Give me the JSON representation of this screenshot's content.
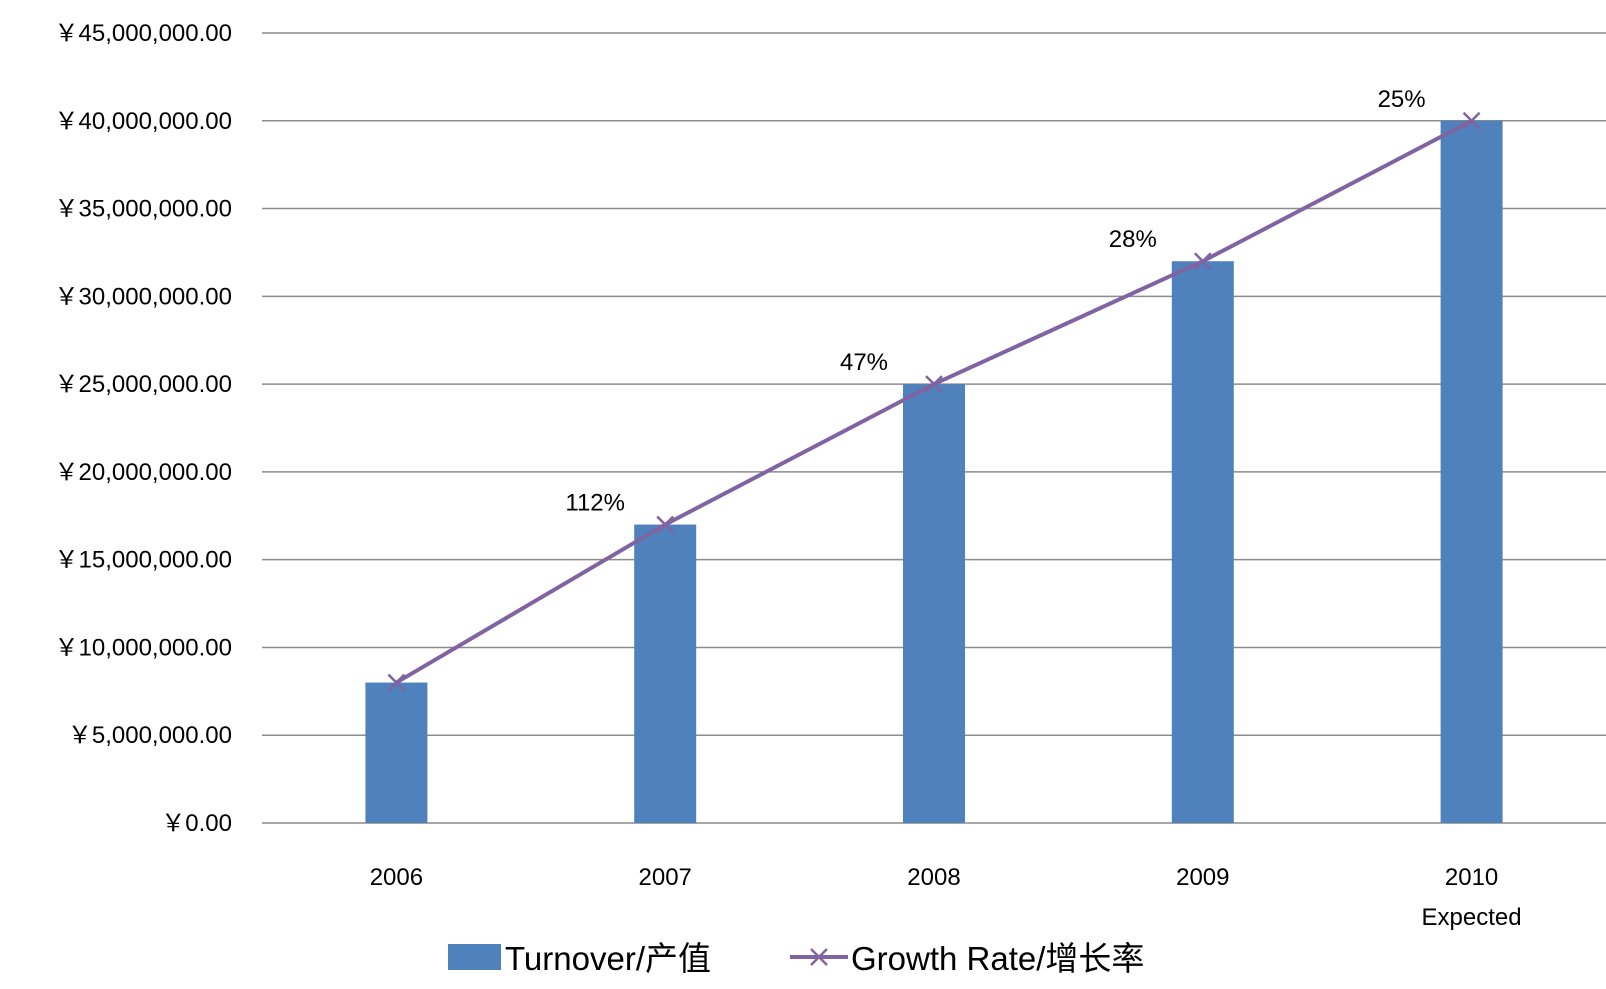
{
  "chart_data": {
    "type": "bar",
    "categories": [
      "2006",
      "2007",
      "2008",
      "2009",
      "2010"
    ],
    "category_sublabels": [
      "",
      "",
      "",
      "",
      "Expected"
    ],
    "ylim": [
      0,
      45000000
    ],
    "ytick_values": [
      0,
      5000000,
      10000000,
      15000000,
      20000000,
      25000000,
      30000000,
      35000000,
      40000000,
      45000000
    ],
    "ytick_labels": [
      "￥0.00",
      "￥5,000,000.00",
      "￥10,000,000.00",
      "￥15,000,000.00",
      "￥20,000,000.00",
      "￥25,000,000.00",
      "￥30,000,000.00",
      "￥35,000,000.00",
      "￥40,000,000.00",
      "￥45,000,000.00"
    ],
    "grid": true,
    "legend_position": "bottom",
    "series": [
      {
        "name": "Turnover/产值",
        "kind": "bar",
        "color": "#4f81bd",
        "values": [
          8000000,
          17000000,
          25000000,
          32000000,
          40000000
        ]
      },
      {
        "name": "Growth Rate/增长率",
        "kind": "line",
        "marker": "x",
        "color": "#8064a2",
        "values": [
          8000000,
          17000000,
          25000000,
          32000000,
          40000000
        ],
        "data_labels": [
          "",
          "112%",
          "47%",
          "28%",
          "25%"
        ]
      }
    ]
  }
}
